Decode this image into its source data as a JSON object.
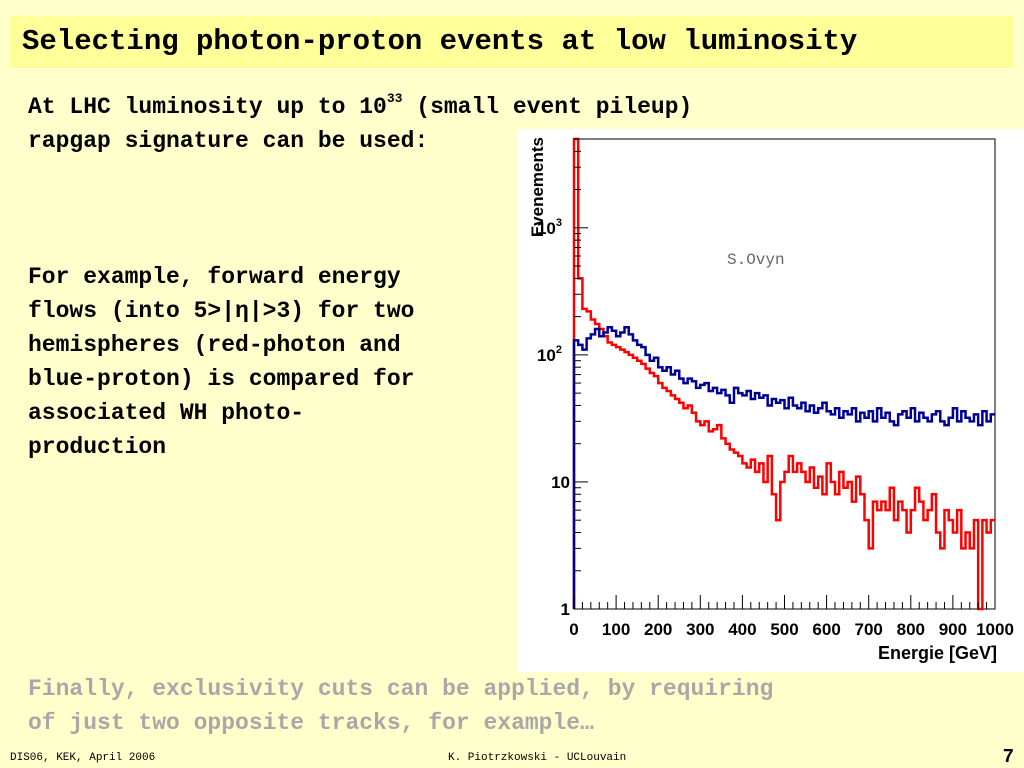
{
  "title": "Selecting photon-proton events at low luminosity",
  "paragraph1": {
    "line1_prefix": "At LHC luminosity up to 10",
    "line1_sup": "33",
    "line1_suffix": " (small event pileup)",
    "line2": "rapgap signature can be used:"
  },
  "paragraph2": "For example, forward energy\nflows (into 5>|η|>3) for two\nhemispheres (red-photon and\nblue-proton) is compared for\nassociated WH photo-\nproduction",
  "paragraph3": "Finally, exclusivity cuts can be applied, by requiring\nof just two opposite tracks, for example…",
  "footer": {
    "left": "DIS06, KEK, April 2006",
    "center": "K. Piotrzkowski - UCLouvain",
    "page": "7"
  },
  "colors": {
    "red_series": "#ff0000",
    "blue_series": "#000099",
    "background": "#ffffcc",
    "title_bar": "#ffff99"
  },
  "chart_data": {
    "type": "line",
    "step": true,
    "annotation": "S.Ovyn",
    "xlabel": "Energie [GeV]",
    "ylabel": "Evenements",
    "xlim": [
      0,
      1000
    ],
    "ylim": [
      1,
      5000
    ],
    "log_y": true,
    "x_ticks": [
      "0",
      "100",
      "200",
      "300",
      "400",
      "500",
      "600",
      "700",
      "800",
      "900",
      "1000"
    ],
    "y_ticks": [
      {
        "value": 1,
        "label": "1"
      },
      {
        "value": 10,
        "label": "10"
      },
      {
        "value": 100,
        "label": "10",
        "exp": "2"
      },
      {
        "value": 1000,
        "label": "10",
        "exp": "3"
      }
    ],
    "bin_width": 10,
    "series": [
      {
        "color": "#ff0000",
        "values": [
          5000,
          400,
          230,
          220,
          190,
          175,
          160,
          140,
          125,
          120,
          115,
          110,
          105,
          100,
          95,
          90,
          85,
          78,
          72,
          68,
          60,
          55,
          52,
          48,
          45,
          42,
          38,
          40,
          35,
          30,
          28,
          30,
          25,
          26,
          28,
          22,
          20,
          18,
          17,
          16,
          14,
          13,
          15,
          12,
          14,
          10,
          16,
          8,
          5,
          10,
          12,
          16,
          12,
          14,
          12,
          10,
          13,
          9,
          11,
          8,
          14,
          10,
          8,
          12,
          9,
          10,
          7,
          11,
          8,
          5,
          3,
          7,
          6,
          7,
          6,
          9,
          5,
          7,
          6,
          4,
          6,
          9,
          7,
          5,
          6,
          8,
          4,
          3,
          6,
          5,
          4,
          6,
          3,
          4,
          3,
          5,
          1,
          5,
          4,
          5
        ]
      },
      {
        "color": "#000099",
        "values": [
          130,
          120,
          110,
          135,
          145,
          160,
          140,
          150,
          165,
          155,
          140,
          150,
          165,
          145,
          130,
          120,
          115,
          100,
          90,
          95,
          80,
          75,
          80,
          70,
          75,
          65,
          60,
          65,
          62,
          55,
          58,
          60,
          52,
          55,
          50,
          53,
          48,
          42,
          55,
          50,
          48,
          52,
          45,
          50,
          46,
          48,
          40,
          45,
          42,
          44,
          38,
          46,
          40,
          38,
          42,
          36,
          40,
          35,
          38,
          42,
          36,
          34,
          38,
          32,
          36,
          34,
          38,
          30,
          35,
          32,
          36,
          30,
          38,
          32,
          35,
          30,
          28,
          34,
          36,
          32,
          38,
          30,
          35,
          32,
          30,
          34,
          36,
          30,
          28,
          32,
          38,
          30,
          36,
          32,
          30,
          34,
          28,
          36,
          30,
          34
        ]
      }
    ]
  }
}
